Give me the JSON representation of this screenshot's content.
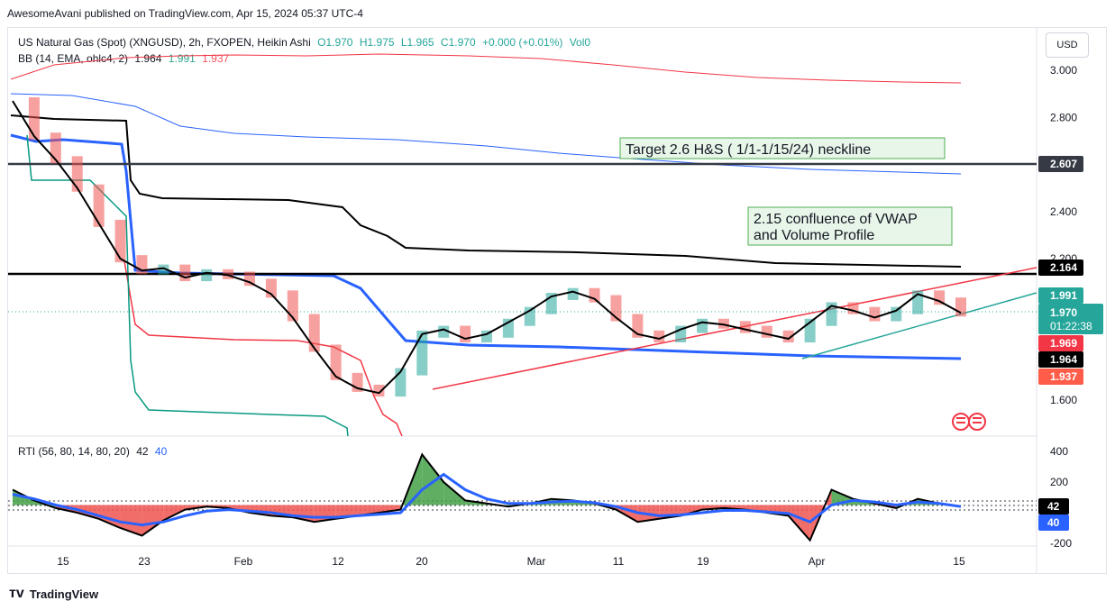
{
  "header": {
    "publish_line": "AwesomeAvani published on TradingView.com, Apr 15, 2024 05:37 UTC-4"
  },
  "legend_main": {
    "symbol": "US Natural Gas (Spot) (XNGUSD), 2h, FXOPEN, Heikin Ashi",
    "o": "O1.970",
    "h": "H1.975",
    "l": "L1.965",
    "c": "C1.970",
    "change": "+0.000 (+0.01%)",
    "vol": "Vol0"
  },
  "legend_bb": {
    "label": "BB (14, EMA, ohlc4, 2)",
    "mid": "1.964",
    "upper": "1.991",
    "lower": "1.937"
  },
  "legend_rti": {
    "label": "RTI (56, 80, 14, 80, 20)",
    "value": "42",
    "signal": "40"
  },
  "currency_button": "USD",
  "annotations": {
    "target_box": "Target 2.6  H&S  ( 1/1-1/15/24) neckline",
    "confluence_line1": "2.15 confluence of VWAP",
    "confluence_line2": "and Volume Profile"
  },
  "price_axis": {
    "ticks": [
      "3.000",
      "2.800",
      "2.600",
      "2.400",
      "2.200",
      "1.600"
    ],
    "tick_values": [
      3.0,
      2.8,
      2.6,
      2.4,
      2.2,
      1.6
    ]
  },
  "price_labels": {
    "level_2607": "2.607",
    "level_2164": "2.164",
    "bb_upper": "1.991",
    "last_price": "1.970",
    "countdown": "01:22:38",
    "red_level": "1.969",
    "bb_mid": "1.964",
    "bb_lower": "1.937"
  },
  "rti_axis": {
    "ticks": [
      "400",
      "200",
      "-200"
    ],
    "value_label": "42",
    "signal_label": "40"
  },
  "time_axis": {
    "labels": [
      "15",
      "23",
      "Feb",
      "12",
      "20",
      "Mar",
      "11",
      "19",
      "Apr",
      "15"
    ]
  },
  "footer": {
    "brand": "TradingView"
  },
  "colors": {
    "candle_up": "#26a69a",
    "candle_down": "#ef5350",
    "bb_upper": "#2ca58d",
    "bb_lower": "#f7525f",
    "blue_line": "#2962ff",
    "trend_red": "#f23645",
    "trend_green": "#26a69a",
    "annotation_bg": "#e8f5e9",
    "annotation_border": "#4caf50"
  },
  "chart_data": {
    "type": "line",
    "title": "",
    "x_labels": [
      "15",
      "23",
      "Feb",
      "12",
      "20",
      "Mar",
      "11",
      "19",
      "Apr",
      "15"
    ],
    "ylim": [
      1.5,
      3.1
    ],
    "series": [
      {
        "name": "",
        "values": [
          2.87,
          2.72,
          2.62,
          2.5,
          2.35,
          2.2,
          2.15,
          2.16,
          2.12,
          2.14,
          2.13,
          2.1,
          2.05,
          1.95,
          1.82,
          1.7,
          1.65,
          1.63,
          1.72,
          1.88,
          1.9,
          1.86,
          1.88,
          1.93,
          1.98,
          2.04,
          2.06,
          2.03,
          1.95,
          1.88,
          1.86,
          1.9,
          1.93,
          1.92,
          1.9,
          1.88,
          1.86,
          1.93,
          2.0,
          1.98,
          1.95,
          1.98,
          2.05,
          2.02,
          1.97
        ]
      }
    ],
    "levels": [
      {
        "name": "2.607",
        "value": 2.607
      },
      {
        "name": "2.164",
        "value": 2.164
      }
    ],
    "rti": {
      "ylim": [
        -250,
        450
      ],
      "series": [
        {
          "name": "RTI",
          "values": [
            150,
            80,
            30,
            0,
            -40,
            -100,
            -150,
            -50,
            20,
            40,
            30,
            0,
            -20,
            -30,
            -60,
            -40,
            -20,
            0,
            20,
            380,
            200,
            80,
            60,
            40,
            60,
            90,
            80,
            60,
            20,
            -60,
            -40,
            -20,
            20,
            30,
            20,
            0,
            -20,
            -180,
            150,
            90,
            60,
            30,
            90,
            60,
            42
          ]
        },
        {
          "name": "Signal",
          "values": [
            120,
            90,
            50,
            20,
            -20,
            -60,
            -80,
            -60,
            -20,
            10,
            20,
            10,
            0,
            -20,
            -30,
            -30,
            -20,
            -10,
            0,
            150,
            250,
            150,
            90,
            60,
            60,
            70,
            75,
            65,
            40,
            0,
            -20,
            -15,
            0,
            15,
            15,
            5,
            -5,
            -60,
            50,
            80,
            70,
            50,
            70,
            60,
            40
          ]
        }
      ]
    }
  }
}
